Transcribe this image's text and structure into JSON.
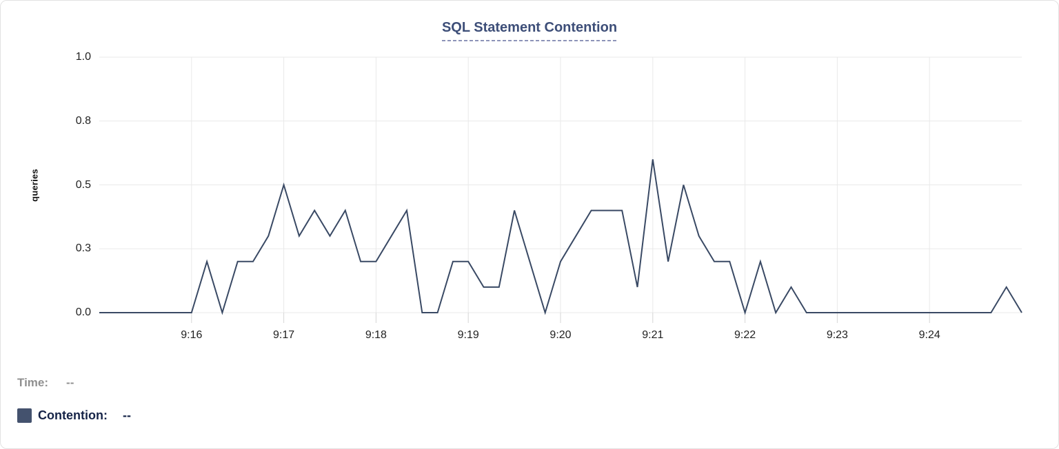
{
  "title": "SQL Statement Contention",
  "legend": {
    "time_label": "Time:",
    "time_value": "--",
    "contention_label": "Contention:",
    "contention_value": "--"
  },
  "colors": {
    "line": "#394964",
    "title": "#3d4e78",
    "title_underline": "#8d94b8",
    "swatch": "#44526e",
    "contention_text": "#162448",
    "time_text": "#8f8f8f",
    "gridline": "#e9e9e9",
    "tick_mark": "#d6d6d6",
    "tick_text": "#1f1f1f",
    "background": "#ffffff"
  },
  "chart_data": {
    "type": "line",
    "title": "SQL Statement Contention",
    "ylabel": "queries",
    "ylim": [
      0,
      1
    ],
    "grid": true,
    "legend_position": "bottom-left",
    "x_start": "9:15:00",
    "x_end": "9:25:00",
    "x_range_seconds": 600,
    "interval_seconds": 10,
    "y_ticks": [
      {
        "value": 0.0,
        "label": "0.0"
      },
      {
        "value": 0.25,
        "label": "0.3"
      },
      {
        "value": 0.5,
        "label": "0.5"
      },
      {
        "value": 0.75,
        "label": "0.8"
      },
      {
        "value": 1.0,
        "label": "1.0"
      }
    ],
    "x_ticks": [
      {
        "seconds": 60,
        "label": "9:16"
      },
      {
        "seconds": 120,
        "label": "9:17"
      },
      {
        "seconds": 180,
        "label": "9:18"
      },
      {
        "seconds": 240,
        "label": "9:19"
      },
      {
        "seconds": 300,
        "label": "9:20"
      },
      {
        "seconds": 360,
        "label": "9:21"
      },
      {
        "seconds": 420,
        "label": "9:22"
      },
      {
        "seconds": 480,
        "label": "9:23"
      },
      {
        "seconds": 540,
        "label": "9:24"
      }
    ],
    "times": [
      "9:15:00",
      "9:15:10",
      "9:15:20",
      "9:15:30",
      "9:15:40",
      "9:15:50",
      "9:16:00",
      "9:16:10",
      "9:16:20",
      "9:16:30",
      "9:16:40",
      "9:16:50",
      "9:17:00",
      "9:17:10",
      "9:17:20",
      "9:17:30",
      "9:17:40",
      "9:17:50",
      "9:18:00",
      "9:18:10",
      "9:18:20",
      "9:18:30",
      "9:18:40",
      "9:18:50",
      "9:19:00",
      "9:19:10",
      "9:19:20",
      "9:19:30",
      "9:19:40",
      "9:19:50",
      "9:20:00",
      "9:20:10",
      "9:20:20",
      "9:20:30",
      "9:20:40",
      "9:20:50",
      "9:21:00",
      "9:21:10",
      "9:21:20",
      "9:21:30",
      "9:21:40",
      "9:21:50",
      "9:22:00",
      "9:22:10",
      "9:22:20",
      "9:22:30",
      "9:22:40",
      "9:22:50",
      "9:23:00",
      "9:23:10",
      "9:23:20",
      "9:23:30",
      "9:23:40",
      "9:23:50",
      "9:24:00",
      "9:24:10",
      "9:24:20",
      "9:24:30",
      "9:24:40",
      "9:24:50",
      "9:25:00"
    ],
    "series": [
      {
        "name": "Contention",
        "values": [
          0,
          0,
          0,
          0,
          0,
          0,
          0,
          0.2,
          0,
          0.2,
          0.2,
          0.3,
          0.5,
          0.3,
          0.4,
          0.3,
          0.4,
          0.2,
          0.2,
          0.3,
          0.4,
          0,
          0,
          0.2,
          0.2,
          0.1,
          0.1,
          0.4,
          0.2,
          0,
          0.2,
          0.3,
          0.4,
          0.4,
          0.4,
          0.1,
          0.6,
          0.2,
          0.5,
          0.3,
          0.2,
          0.2,
          0,
          0.2,
          0,
          0.1,
          0,
          0,
          0,
          0,
          0,
          0,
          0,
          0,
          0,
          0,
          0,
          0,
          0,
          0.1,
          0
        ]
      }
    ]
  }
}
